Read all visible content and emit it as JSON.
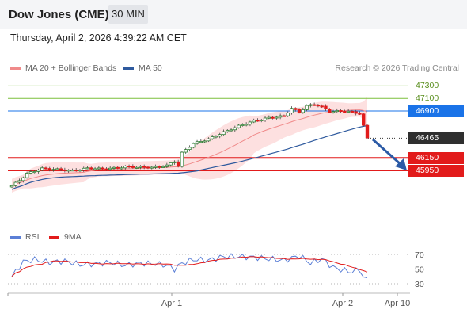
{
  "header": {
    "title": "Dow Jones (CME)",
    "timeframe": "30 MIN"
  },
  "datetime": "Thursday, April 2, 2026 4:39:22 AM CET",
  "legend": {
    "items": [
      {
        "label": "MA 20 + Bollinger Bands",
        "color": "#f08a8a"
      },
      {
        "label": "MA 50",
        "color": "#2f5a9e"
      }
    ],
    "copyright": "Research © 2026 Trading Central"
  },
  "rsi_legend": {
    "items": [
      {
        "label": "RSI",
        "color": "#5b7fd6"
      },
      {
        "label": "9MA",
        "color": "#e21b1b"
      }
    ]
  },
  "colors": {
    "up": "#2e7d32",
    "down": "#e21b1b",
    "bollinger_fill": "#fde0e0",
    "ma20": "#f08a8a",
    "ma50": "#2f5a9e",
    "resistance": "#7cbf3c",
    "level_blue": "#1a73e8",
    "level_red": "#e21b1b",
    "current": "#333333",
    "arrow": "#2b5aa6"
  },
  "chart_data": [
    {
      "type": "candlestick",
      "title": "",
      "x_tick_labels": [
        "Apr 1",
        "Apr 2",
        "Apr 10"
      ],
      "ylim": [
        45600,
        47450
      ],
      "levels": [
        {
          "label": "47300",
          "value": 47300,
          "kind": "resistance"
        },
        {
          "label": "47100",
          "value": 47100,
          "kind": "resistance"
        },
        {
          "label": "46900",
          "value": 46900,
          "kind": "pivot"
        },
        {
          "label": "46465",
          "value": 46465,
          "kind": "last"
        },
        {
          "label": "46150",
          "value": 46150,
          "kind": "support"
        },
        {
          "label": "45950",
          "value": 45950,
          "kind": "support"
        }
      ],
      "grid": false,
      "annotation": "arrow pointing down toward 45950"
    },
    {
      "type": "line",
      "title": "",
      "series_labels": [
        "RSI",
        "9MA"
      ],
      "ylim": [
        20,
        80
      ],
      "y_ticks": [
        "70",
        "50",
        "30"
      ],
      "grid": true
    }
  ]
}
